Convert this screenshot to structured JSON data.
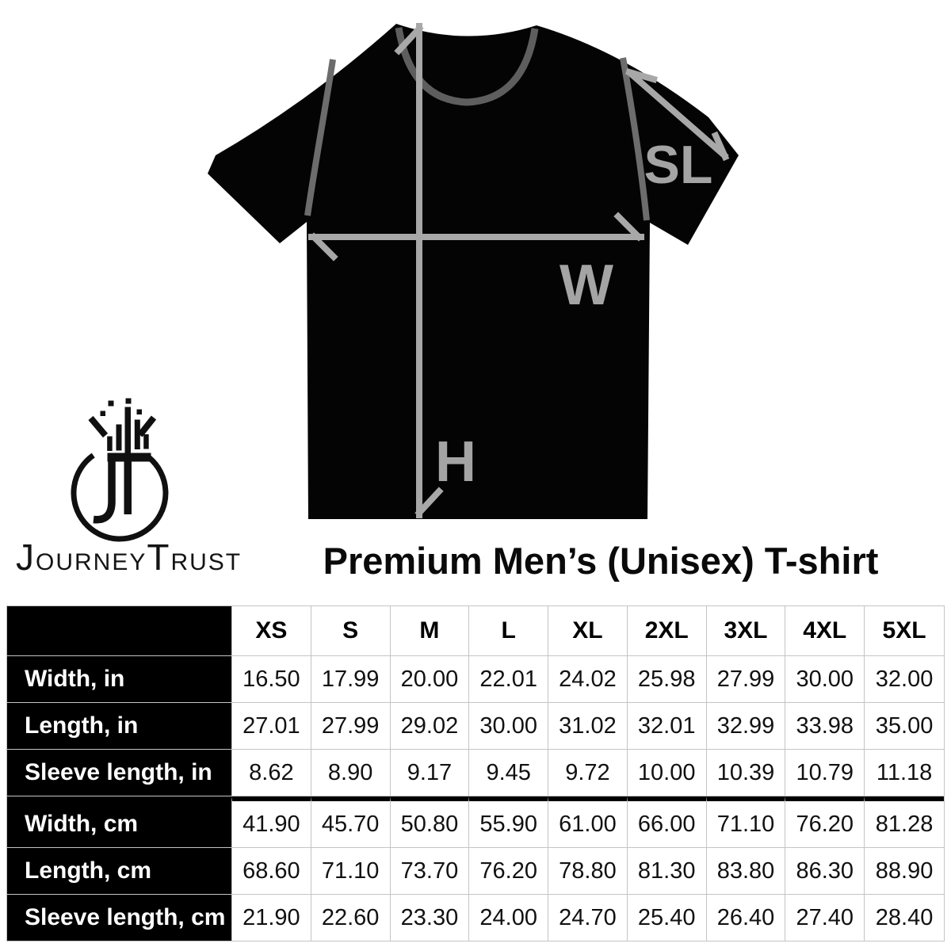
{
  "title": "Premium Men’s (Unisex) T-shirt",
  "logo": {
    "monogram": "JT",
    "wordmark": {
      "initial1": "J",
      "rest1": "OURNEY",
      "initial2": "T",
      "rest2": "RUST"
    }
  },
  "diagram": {
    "labels": {
      "height": "H",
      "width": "W",
      "sleeve": "SL"
    },
    "colors": {
      "shirt": "#040404",
      "arrow": "#a8a8a8",
      "label": "#a4a4a4",
      "collar": "#5e5e5e",
      "seam": "#6c6c6c"
    }
  },
  "table": {
    "sizes": [
      "XS",
      "S",
      "M",
      "L",
      "XL",
      "2XL",
      "3XL",
      "4XL",
      "5XL"
    ],
    "rows": [
      {
        "label": "Width, in",
        "values": [
          "16.50",
          "17.99",
          "20.00",
          "22.01",
          "24.02",
          "25.98",
          "27.99",
          "30.00",
          "32.00"
        ]
      },
      {
        "label": "Length, in",
        "values": [
          "27.01",
          "27.99",
          "29.02",
          "30.00",
          "31.02",
          "32.01",
          "32.99",
          "33.98",
          "35.00"
        ]
      },
      {
        "label": "Sleeve length, in",
        "values": [
          "8.62",
          "8.90",
          "9.17",
          "9.45",
          "9.72",
          "10.00",
          "10.39",
          "10.79",
          "11.18"
        ]
      },
      {
        "label": "Width, cm",
        "values": [
          "41.90",
          "45.70",
          "50.80",
          "55.90",
          "61.00",
          "66.00",
          "71.10",
          "76.20",
          "81.28"
        ]
      },
      {
        "label": "Length, cm",
        "values": [
          "68.60",
          "71.10",
          "73.70",
          "76.20",
          "78.80",
          "81.30",
          "83.80",
          "86.30",
          "88.90"
        ]
      },
      {
        "label": "Sleeve length, cm",
        "values": [
          "21.90",
          "22.60",
          "23.30",
          "24.00",
          "24.70",
          "25.40",
          "26.40",
          "27.40",
          "28.40"
        ]
      }
    ],
    "colors": {
      "label_bg": "#000000",
      "label_text": "#ffffff",
      "grid": "#c4c4c4",
      "divider": "#000000"
    }
  }
}
